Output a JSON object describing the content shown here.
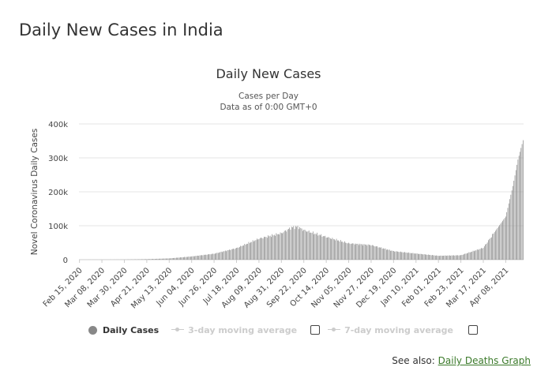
{
  "page": {
    "heading": "Daily New Cases in India"
  },
  "chart_data": {
    "type": "bar",
    "title": "Daily New Cases",
    "subtitle_lines": [
      "Cases per Day",
      "Data as of 0:00 GMT+0"
    ],
    "ylabel": "Novel Coronavirus Daily Cases",
    "xlabel": "",
    "ylim": [
      0,
      400000
    ],
    "y_ticks": [
      0,
      100000,
      200000,
      300000,
      400000
    ],
    "y_tick_labels": [
      "0",
      "100k",
      "200k",
      "300k",
      "400k"
    ],
    "grid": true,
    "x_start": "2020-02-15",
    "x_end": "2021-04-25",
    "x_tick_labels": [
      "Feb 15, 2020",
      "Mar 08, 2020",
      "Mar 30, 2020",
      "Apr 21, 2020",
      "May 13, 2020",
      "Jun 04, 2020",
      "Jun 26, 2020",
      "Jul 18, 2020",
      "Aug 09, 2020",
      "Aug 31, 2020",
      "Sep 22, 2020",
      "Oct 14, 2020",
      "Nov 05, 2020",
      "Nov 27, 2020",
      "Dec 19, 2020",
      "Jan 10, 2021",
      "Feb 01, 2021",
      "Feb 23, 2021",
      "Mar 17, 2021",
      "Apr 08, 2021"
    ],
    "series": [
      {
        "name": "Daily Cases",
        "color": "#888888",
        "points": [
          [
            "2020-02-15",
            0
          ],
          [
            "2020-03-08",
            30
          ],
          [
            "2020-03-30",
            300
          ],
          [
            "2020-04-21",
            1500
          ],
          [
            "2020-05-13",
            3700
          ],
          [
            "2020-06-04",
            9500
          ],
          [
            "2020-06-26",
            17500
          ],
          [
            "2020-07-18",
            34000
          ],
          [
            "2020-08-09",
            62000
          ],
          [
            "2020-08-31",
            78000
          ],
          [
            "2020-09-10",
            95000
          ],
          [
            "2020-09-16",
            97000
          ],
          [
            "2020-09-22",
            87000
          ],
          [
            "2020-10-14",
            67000
          ],
          [
            "2020-11-05",
            48000
          ],
          [
            "2020-11-27",
            43000
          ],
          [
            "2020-12-19",
            25000
          ],
          [
            "2021-01-10",
            18000
          ],
          [
            "2021-02-01",
            11500
          ],
          [
            "2021-02-23",
            13000
          ],
          [
            "2021-03-17",
            35000
          ],
          [
            "2021-04-08",
            127000
          ],
          [
            "2021-04-15",
            217000
          ],
          [
            "2021-04-20",
            295000
          ],
          [
            "2021-04-25",
            352000
          ]
        ]
      }
    ],
    "legend": {
      "position": "bottom",
      "items": [
        {
          "label": "Daily Cases",
          "active": true
        },
        {
          "label": "3-day moving average",
          "active": false
        },
        {
          "label": "7-day moving average",
          "active": false
        }
      ]
    }
  },
  "see_also": {
    "prefix": "See also:",
    "link_text": "Daily Deaths Graph"
  },
  "colors": {
    "bars": "#888888",
    "grid": "#e6e6e6",
    "link": "#3b7a2a"
  }
}
